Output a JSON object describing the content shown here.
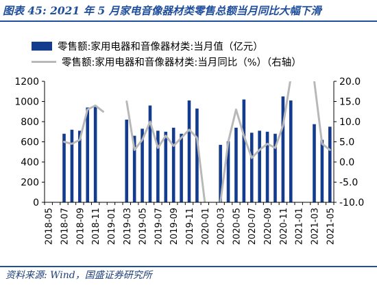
{
  "header": {
    "title": "图表 45:  2021 年 5 月家电音像器材类零售总额当月同比大幅下滑"
  },
  "footer": {
    "source": "资料来源:  Wind，国盛证券研究所"
  },
  "colors": {
    "title": "#1f4e9c",
    "bar": "#133c8f",
    "line": "#b8b8b8"
  },
  "chart_data": {
    "type": "bar",
    "legend": [
      {
        "name": "零售额:家用电器和音像器材类:当月值（亿元）",
        "kind": "bar"
      },
      {
        "name": "零售额:家用电器和音像器材类:当月同比（%）（右轴）",
        "kind": "line"
      }
    ],
    "x": [
      "2018-05",
      "2018-06",
      "2018-07",
      "2018-08",
      "2018-09",
      "2018-10",
      "2018-11",
      "2018-12",
      "2019-01",
      "2019-02",
      "2019-03",
      "2019-04",
      "2019-05",
      "2019-06",
      "2019-07",
      "2019-08",
      "2019-09",
      "2019-10",
      "2019-11",
      "2019-12",
      "2020-01",
      "2020-02",
      "2020-03",
      "2020-04",
      "2020-05",
      "2020-06",
      "2020-07",
      "2020-08",
      "2020-09",
      "2020-10",
      "2020-11",
      "2020-12",
      "2021-01",
      "2021-02",
      "2021-03",
      "2021-04",
      "2021-05"
    ],
    "x_tick_labels": [
      "2018-05",
      "2018-07",
      "2018-09",
      "2018-11",
      "2019-01",
      "2019-03",
      "2019-05",
      "2019-07",
      "2019-09",
      "2019-11",
      "2020-01",
      "2020-03",
      "2020-05",
      "2020-07",
      "2020-09",
      "2020-11",
      "2021-01",
      "2021-03",
      "2021-05"
    ],
    "series": [
      {
        "name": "零售额:家用电器和音像器材类:当月值（亿元）",
        "type": "bar",
        "axis": "left",
        "values": [
          null,
          null,
          680,
          720,
          710,
          940,
          950,
          null,
          null,
          null,
          820,
          660,
          730,
          960,
          710,
          700,
          740,
          680,
          1010,
          930,
          null,
          null,
          570,
          605,
          740,
          1020,
          690,
          710,
          700,
          680,
          1050,
          1010,
          null,
          null,
          775,
          620,
          750
        ]
      },
      {
        "name": "零售额:家用电器和音像器材类:当月同比（%）（右轴）",
        "type": "line",
        "axis": "right",
        "values": [
          null,
          null,
          5.0,
          4.5,
          5.5,
          13.0,
          14.0,
          12.5,
          null,
          null,
          15.0,
          3.0,
          5.5,
          10.0,
          3.5,
          6.5,
          4.0,
          6.0,
          8.0,
          6.0,
          -10.0,
          null,
          -10.0,
          5.0,
          13.0,
          6.5,
          1.0,
          3.0,
          4.5,
          3.5,
          9.0,
          21.0,
          null,
          null,
          20.0,
          4.5,
          3.0
        ]
      }
    ],
    "y_left": {
      "min": 0,
      "max": 1200,
      "ticks": [
        "0",
        "200",
        "400",
        "600",
        "800",
        "1000",
        "1200"
      ]
    },
    "y_right": {
      "min": -10,
      "max": 20,
      "ticks": [
        "-10.0",
        "-5.0",
        "0.0",
        "5.0",
        "10.0",
        "15.0",
        "20.0"
      ]
    },
    "grid": false,
    "legend_position": "top-left"
  }
}
